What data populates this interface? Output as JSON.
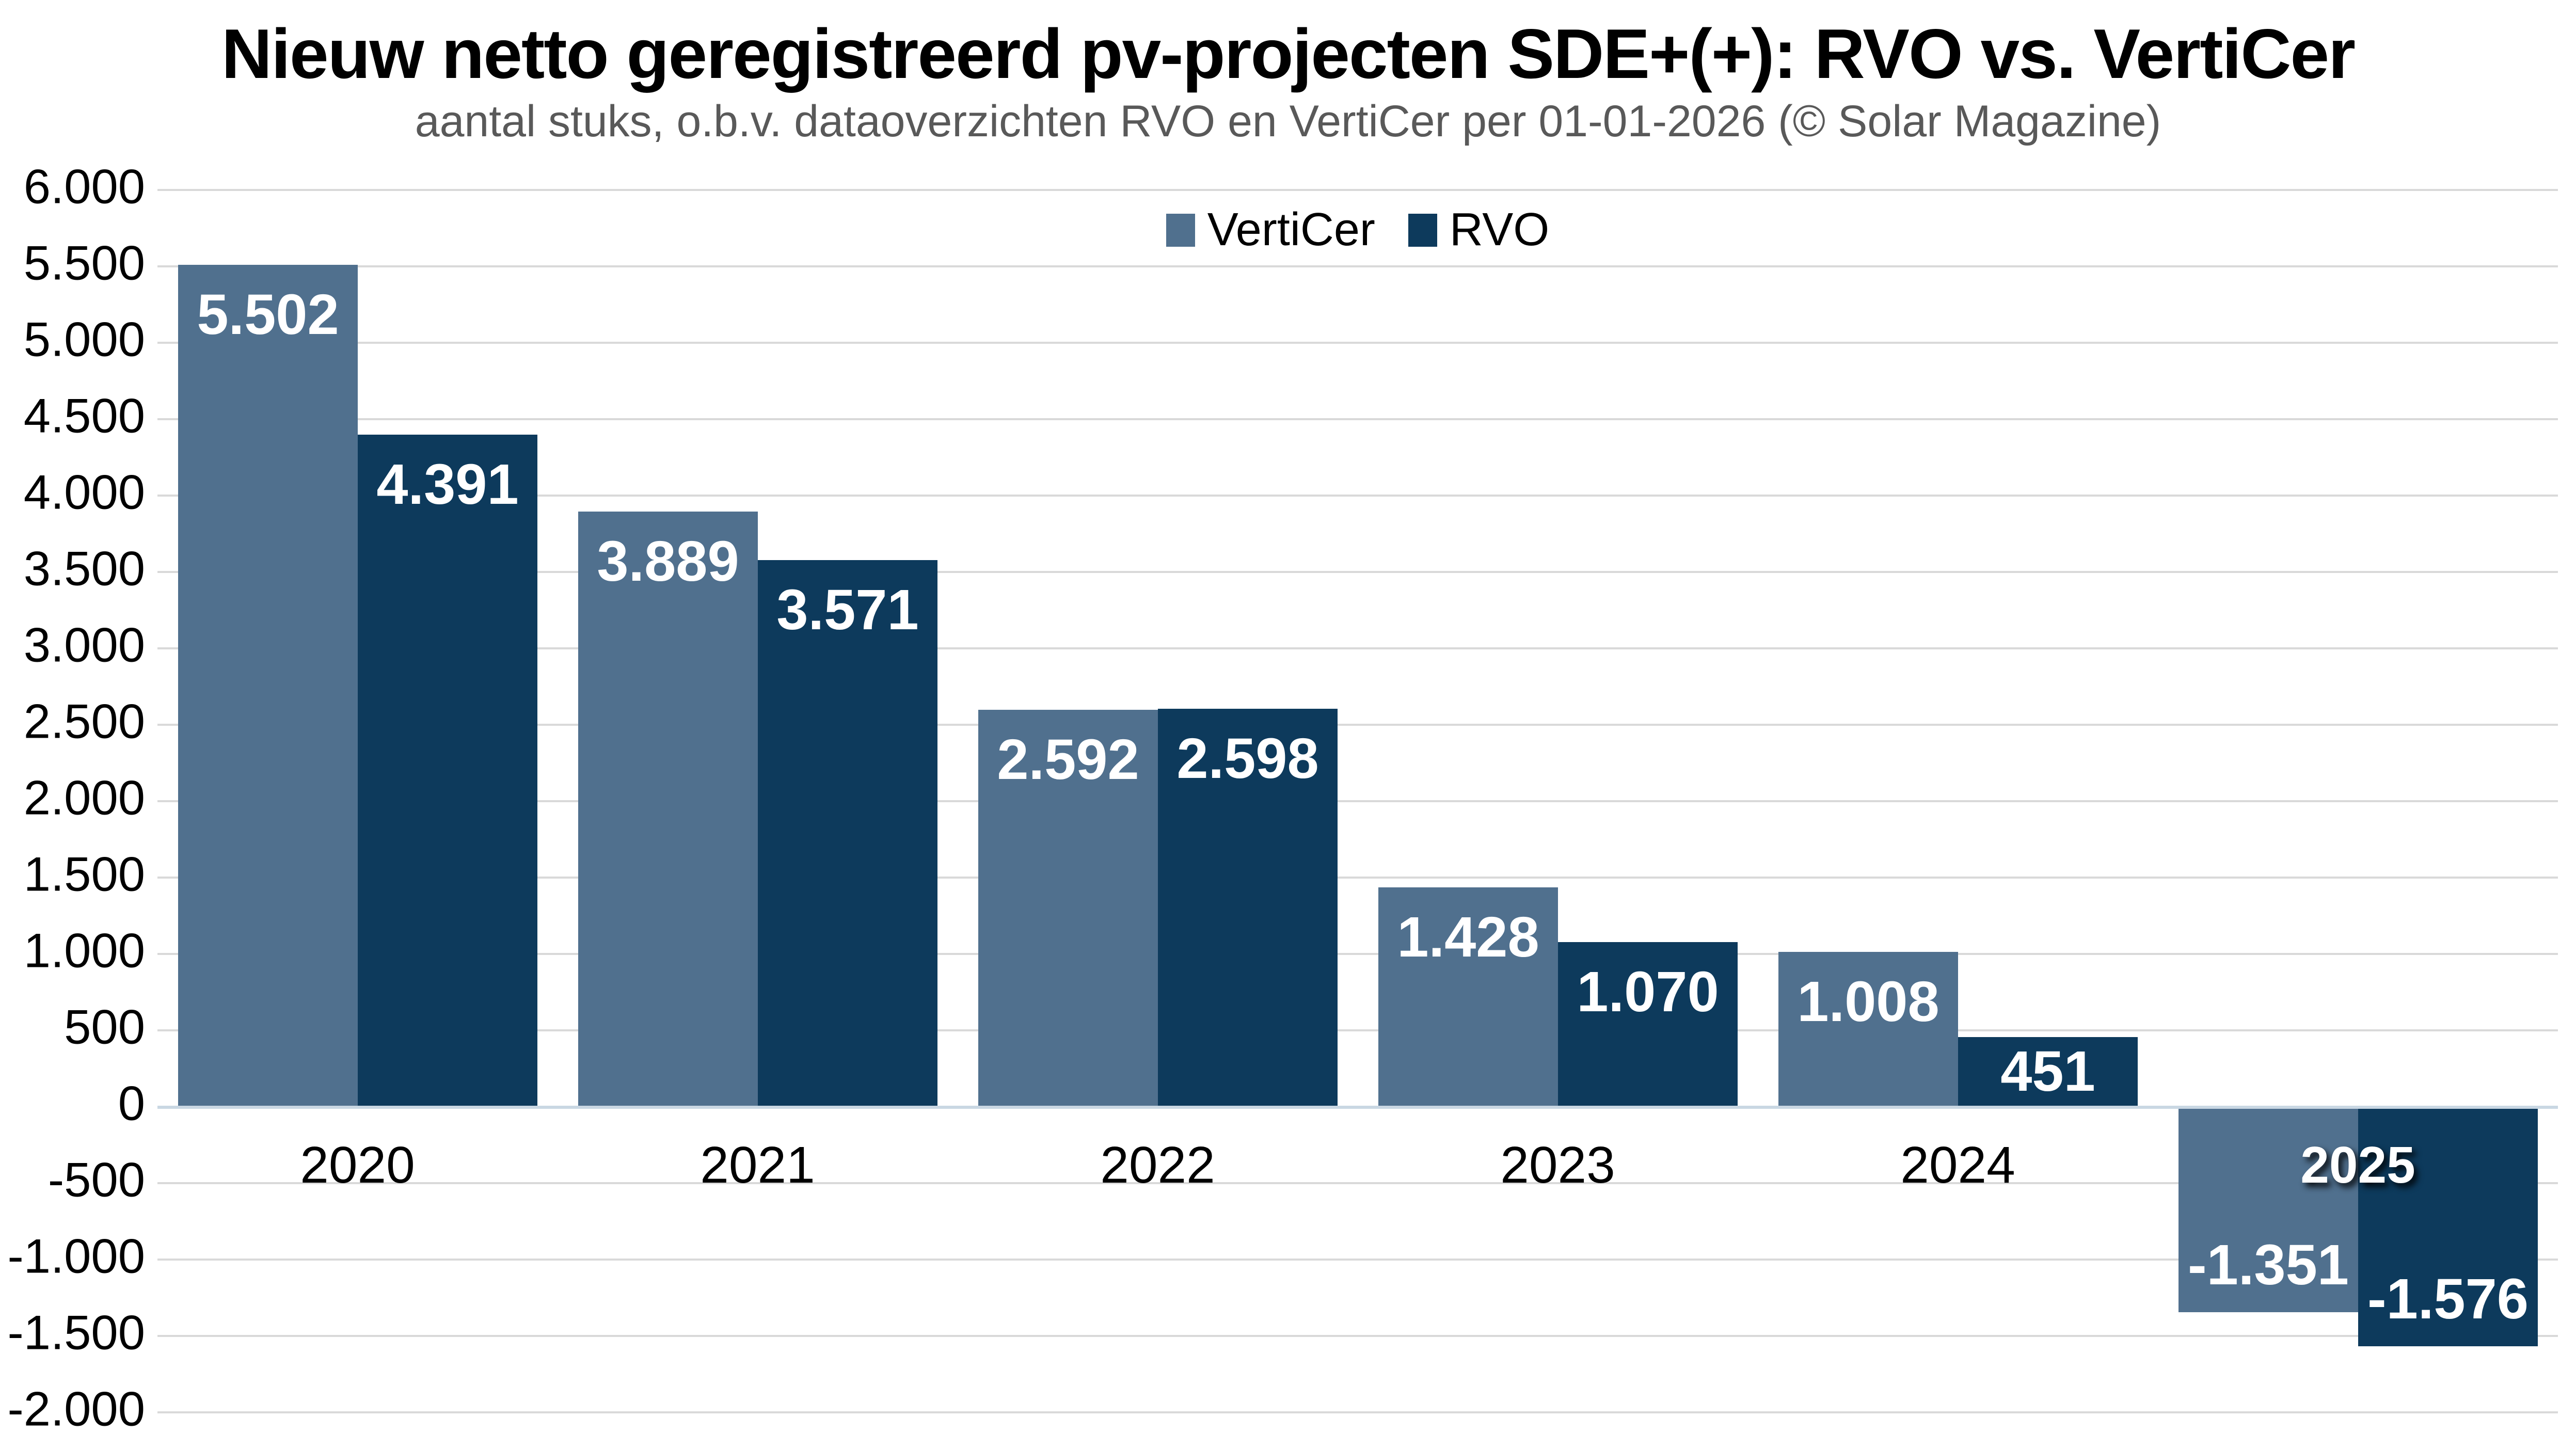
{
  "title": "Nieuw netto geregistreerd pv-projecten SDE+(+): RVO vs. VertiCer",
  "subtitle": "aantal stuks, o.b.v. dataoverzichten RVO en VertiCer per 01-01-2026 (© Solar Magazine)",
  "colors": {
    "title_text": "#000000",
    "subtitle_text": "#595959",
    "verticer": "#50708E",
    "rvo": "#0D3A5C",
    "gridline": "#D9D9D9",
    "zero_line": "#C9D7E3",
    "bar_label_text": "#FFFFFF",
    "axis_label_text": "#000000"
  },
  "legend": {
    "items": [
      {
        "label": "VertiCer",
        "color": "#50708E"
      },
      {
        "label": "RVO",
        "color": "#0D3A5C"
      }
    ]
  },
  "chart_data": {
    "type": "bar",
    "title": "Nieuw netto geregistreerd pv-projecten SDE+(+): RVO vs. VertiCer",
    "subtitle": "aantal stuks, o.b.v. dataoverzichten RVO en VertiCer per 01-01-2026 (© Solar Magazine)",
    "categories": [
      "2020",
      "2021",
      "2022",
      "2023",
      "2024",
      "2025"
    ],
    "series": [
      {
        "name": "VertiCer",
        "color": "#50708E",
        "values": [
          5502,
          3889,
          2592,
          1428,
          1008,
          -1351
        ],
        "labels": [
          "5.502",
          "3.889",
          "2.592",
          "1.428",
          "1.008",
          "-1.351"
        ]
      },
      {
        "name": "RVO",
        "color": "#0D3A5C",
        "values": [
          4391,
          3571,
          2598,
          1070,
          451,
          -1576
        ],
        "labels": [
          "4.391",
          "3.571",
          "2.598",
          "1.070",
          "451",
          "-1.576"
        ]
      }
    ],
    "ylim": [
      -2000,
      6000
    ],
    "ytick_step": 500,
    "ytick_labels": [
      "6.000",
      "5.500",
      "5.000",
      "4.500",
      "4.000",
      "3.500",
      "3.000",
      "2.500",
      "2.000",
      "1.500",
      "1.000",
      "500",
      "0",
      "-500",
      "-1.000",
      "-1.500",
      "-2.000"
    ],
    "grid": "horizontal",
    "legend_position": "top-center"
  }
}
